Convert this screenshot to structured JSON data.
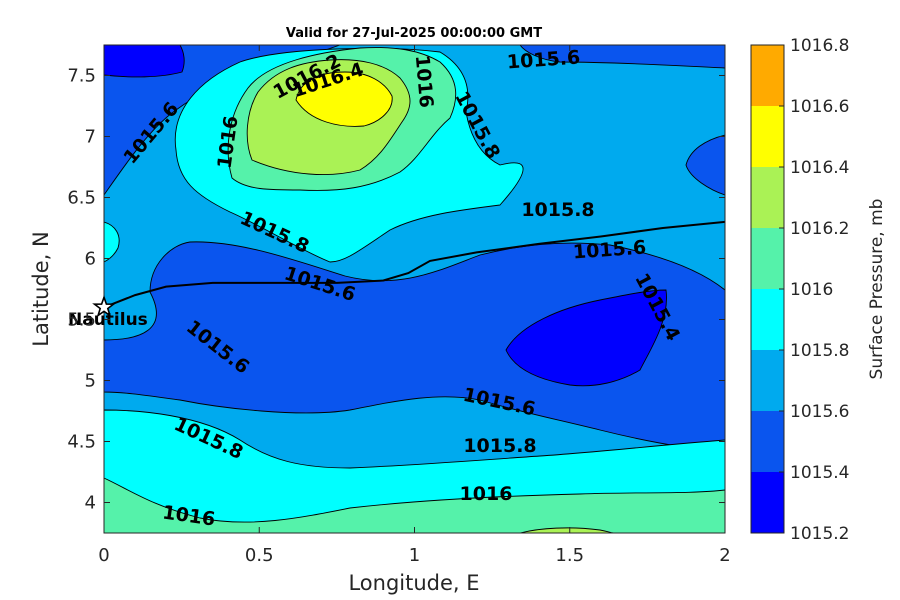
{
  "title": "Valid for 27-Jul-2025 00:00:00 GMT",
  "xlabel": "Longitude, E",
  "ylabel": "Latitude, N",
  "colorbar_label": "Surface Pressure, mb",
  "station_label": "Nautilus",
  "x_ticks": [
    "0",
    "0.5",
    "1",
    "1.5",
    "2"
  ],
  "y_ticks": [
    "4",
    "4.5",
    "5",
    "5.5",
    "6",
    "6.5",
    "7",
    "7.5"
  ],
  "colorbar_ticks": [
    "1015.2",
    "1015.4",
    "1015.6",
    "1015.8",
    "1016",
    "1016.2",
    "1016.4",
    "1016.6",
    "1016.8"
  ],
  "contour_labels": [
    "1016.2",
    "1016.4",
    "1016",
    "1015.6",
    "1016",
    "1015.6",
    "1015.8",
    "1015.8",
    "1015.8",
    "1015.6",
    "1015.6",
    "1015.4",
    "1015.6",
    "1015.6",
    "1015.8",
    "1015.8",
    "1016",
    "1016"
  ],
  "colors": {
    "level_1015_2": "#0000ff",
    "level_1015_4": "#0a55ee",
    "level_1015_6": "#00aaee",
    "level_1015_8": "#00ffff",
    "level_1016": "#55f2aa",
    "level_1016_2": "#aaf255",
    "level_1016_4": "#ffff00",
    "level_1016_6": "#ffaa00",
    "level_1016_8": "#ff5500"
  },
  "chart_data": {
    "type": "contour",
    "xlim": [
      0,
      2
    ],
    "ylim": [
      3.75,
      7.75
    ],
    "clim": [
      1015.2,
      1016.8
    ],
    "levels": [
      1015.2,
      1015.4,
      1015.6,
      1015.8,
      1016.0,
      1016.2,
      1016.4,
      1016.6,
      1016.8
    ],
    "station": {
      "name": "Nautilus",
      "lon": 0.0,
      "lat": 5.6
    },
    "track_lon": [
      0.0,
      0.1,
      0.2,
      0.35,
      0.55,
      0.75,
      0.9,
      0.98,
      1.05,
      1.2,
      1.4,
      1.6,
      1.8,
      2.0
    ],
    "track_lat": [
      5.6,
      5.7,
      5.77,
      5.8,
      5.8,
      5.8,
      5.82,
      5.88,
      5.98,
      6.05,
      6.12,
      6.18,
      6.25,
      6.3
    ],
    "grid": false
  }
}
